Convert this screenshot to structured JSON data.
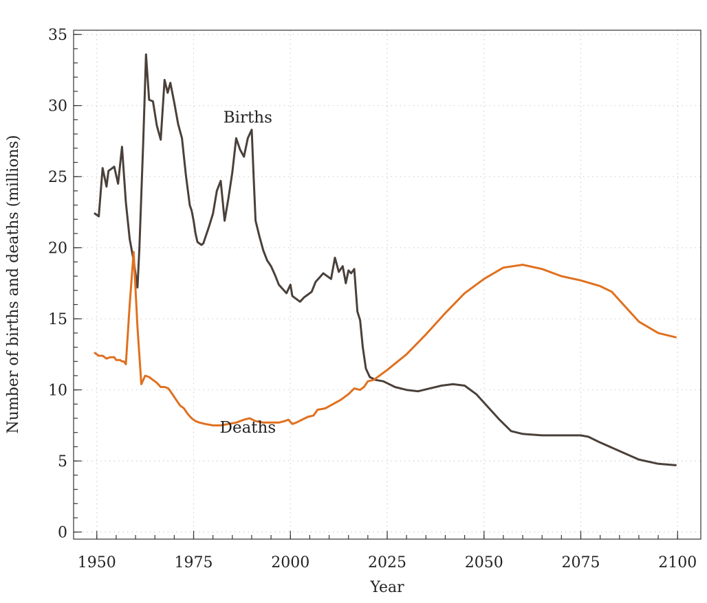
{
  "chart_data": {
    "type": "line",
    "xlabel": "Year",
    "ylabel": "Number of births and deaths (millions)",
    "xlim": [
      1944,
      2106
    ],
    "ylim": [
      -0.5,
      35.3
    ],
    "xticks": [
      1950,
      1975,
      2000,
      2025,
      2050,
      2075,
      2100
    ],
    "yticks": [
      0,
      5,
      10,
      15,
      20,
      25,
      30,
      35
    ],
    "grid": true,
    "colors": {
      "births": "#4a403a",
      "deaths": "#e0701f"
    },
    "series": [
      {
        "name": "Births",
        "color": "#4a403a",
        "label_at": [
          1989,
          28.8
        ],
        "points": [
          [
            1949.5,
            22.4
          ],
          [
            1950.5,
            22.2
          ],
          [
            1951.5,
            25.6
          ],
          [
            1952.5,
            24.3
          ],
          [
            1953,
            25.4
          ],
          [
            1954,
            25.6
          ],
          [
            1954.5,
            25.7
          ],
          [
            1955.5,
            24.5
          ],
          [
            1956.5,
            27.1
          ],
          [
            1957.5,
            23.2
          ],
          [
            1958.5,
            20.6
          ],
          [
            1959.5,
            19.1
          ],
          [
            1960.5,
            17.2
          ],
          [
            1961,
            20.0
          ],
          [
            1962,
            27.5
          ],
          [
            1962.7,
            33.6
          ],
          [
            1963.5,
            30.4
          ],
          [
            1964.5,
            30.3
          ],
          [
            1965.5,
            28.6
          ],
          [
            1966.5,
            27.6
          ],
          [
            1967.5,
            31.8
          ],
          [
            1968.3,
            30.9
          ],
          [
            1969,
            31.6
          ],
          [
            1970,
            30.2
          ],
          [
            1971,
            28.7
          ],
          [
            1972,
            27.7
          ],
          [
            1973,
            25.1
          ],
          [
            1974,
            23.0
          ],
          [
            1974.5,
            22.6
          ],
          [
            1975,
            21.9
          ],
          [
            1975.5,
            21.0
          ],
          [
            1976,
            20.4
          ],
          [
            1977,
            20.2
          ],
          [
            1977.5,
            20.3
          ],
          [
            1978,
            20.7
          ],
          [
            1979,
            21.5
          ],
          [
            1980,
            22.4
          ],
          [
            1981,
            24.0
          ],
          [
            1982,
            24.7
          ],
          [
            1983,
            21.9
          ],
          [
            1984,
            23.5
          ],
          [
            1985,
            25.3
          ],
          [
            1986,
            27.7
          ],
          [
            1987,
            26.9
          ],
          [
            1988,
            26.4
          ],
          [
            1989,
            27.7
          ],
          [
            1990,
            28.3
          ],
          [
            1990.5,
            25.0
          ],
          [
            1991,
            21.9
          ],
          [
            1992,
            20.8
          ],
          [
            1993,
            19.8
          ],
          [
            1994,
            19.1
          ],
          [
            1995,
            18.7
          ],
          [
            1996,
            18.1
          ],
          [
            1997,
            17.4
          ],
          [
            1998,
            17.1
          ],
          [
            1999,
            16.8
          ],
          [
            2000,
            17.4
          ],
          [
            2000.5,
            16.6
          ],
          [
            2001.5,
            16.4
          ],
          [
            2002.5,
            16.2
          ],
          [
            2003.5,
            16.5
          ],
          [
            2004.5,
            16.7
          ],
          [
            2005.5,
            16.9
          ],
          [
            2006.5,
            17.6
          ],
          [
            2007.5,
            17.9
          ],
          [
            2008.5,
            18.2
          ],
          [
            2009.5,
            18.0
          ],
          [
            2010.5,
            17.8
          ],
          [
            2011.5,
            19.3
          ],
          [
            2012.5,
            18.3
          ],
          [
            2013.5,
            18.7
          ],
          [
            2014.3,
            17.5
          ],
          [
            2015,
            18.4
          ],
          [
            2015.7,
            18.2
          ],
          [
            2016.5,
            18.5
          ],
          [
            2017.3,
            15.5
          ],
          [
            2018,
            14.9
          ],
          [
            2018.7,
            13.0
          ],
          [
            2019.5,
            11.5
          ],
          [
            2020.5,
            10.9
          ],
          [
            2022,
            10.7
          ],
          [
            2024,
            10.6
          ],
          [
            2027,
            10.2
          ],
          [
            2030,
            10.0
          ],
          [
            2033,
            9.9
          ],
          [
            2036,
            10.1
          ],
          [
            2039,
            10.3
          ],
          [
            2042,
            10.4
          ],
          [
            2045,
            10.3
          ],
          [
            2048,
            9.7
          ],
          [
            2051,
            8.8
          ],
          [
            2054,
            7.9
          ],
          [
            2057,
            7.1
          ],
          [
            2060,
            6.9
          ],
          [
            2065,
            6.8
          ],
          [
            2070,
            6.8
          ],
          [
            2075,
            6.8
          ],
          [
            2077,
            6.7
          ],
          [
            2080,
            6.3
          ],
          [
            2085,
            5.7
          ],
          [
            2090,
            5.1
          ],
          [
            2095,
            4.8
          ],
          [
            2099.5,
            4.7
          ]
        ]
      },
      {
        "name": "Deaths",
        "color": "#e0701f",
        "label_at": [
          1989,
          7.0
        ],
        "points": [
          [
            1949.5,
            12.6
          ],
          [
            1950.5,
            12.4
          ],
          [
            1951.5,
            12.4
          ],
          [
            1952.5,
            12.2
          ],
          [
            1953.5,
            12.3
          ],
          [
            1954.5,
            12.3
          ],
          [
            1955,
            12.1
          ],
          [
            1956,
            12.1
          ],
          [
            1956.5,
            12.0
          ],
          [
            1957,
            12.0
          ],
          [
            1957.5,
            11.8
          ],
          [
            1958.5,
            16.0
          ],
          [
            1959.5,
            19.7
          ],
          [
            1960.5,
            14.4
          ],
          [
            1961.5,
            10.4
          ],
          [
            1962.5,
            11.0
          ],
          [
            1963.5,
            10.9
          ],
          [
            1964.5,
            10.7
          ],
          [
            1965.5,
            10.5
          ],
          [
            1966.5,
            10.2
          ],
          [
            1967.5,
            10.2
          ],
          [
            1968.5,
            10.1
          ],
          [
            1969.5,
            9.7
          ],
          [
            1970.5,
            9.3
          ],
          [
            1971.5,
            8.9
          ],
          [
            1972.5,
            8.7
          ],
          [
            1973.5,
            8.3
          ],
          [
            1974.5,
            8.0
          ],
          [
            1975.5,
            7.8
          ],
          [
            1976.5,
            7.7
          ],
          [
            1978,
            7.6
          ],
          [
            1980,
            7.5
          ],
          [
            1982,
            7.5
          ],
          [
            1984,
            7.6
          ],
          [
            1986,
            7.7
          ],
          [
            1988,
            7.9
          ],
          [
            1989.5,
            8.0
          ],
          [
            1991,
            7.8
          ],
          [
            1993,
            7.7
          ],
          [
            1995,
            7.7
          ],
          [
            1997,
            7.7
          ],
          [
            1998.5,
            7.8
          ],
          [
            1999.5,
            7.9
          ],
          [
            2000.5,
            7.6
          ],
          [
            2001.5,
            7.7
          ],
          [
            2003,
            7.9
          ],
          [
            2004.5,
            8.1
          ],
          [
            2006,
            8.2
          ],
          [
            2007,
            8.6
          ],
          [
            2009,
            8.7
          ],
          [
            2011,
            9.0
          ],
          [
            2013,
            9.3
          ],
          [
            2015,
            9.7
          ],
          [
            2016.5,
            10.1
          ],
          [
            2018,
            10.0
          ],
          [
            2019,
            10.2
          ],
          [
            2020,
            10.6
          ],
          [
            2021.5,
            10.7
          ],
          [
            2025,
            11.4
          ],
          [
            2030,
            12.5
          ],
          [
            2035,
            13.9
          ],
          [
            2040,
            15.4
          ],
          [
            2045,
            16.8
          ],
          [
            2050,
            17.8
          ],
          [
            2055,
            18.6
          ],
          [
            2060,
            18.8
          ],
          [
            2065,
            18.5
          ],
          [
            2070,
            18.0
          ],
          [
            2075,
            17.7
          ],
          [
            2080,
            17.3
          ],
          [
            2083,
            16.9
          ],
          [
            2086,
            16.0
          ],
          [
            2090,
            14.8
          ],
          [
            2095,
            14.0
          ],
          [
            2099.5,
            13.7
          ]
        ]
      }
    ]
  }
}
